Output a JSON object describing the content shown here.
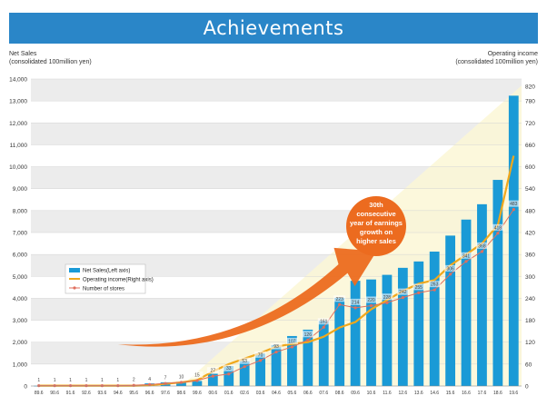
{
  "title": "Achievements",
  "left_axis_title": [
    "Net Sales",
    "(consolidated 100million yen)"
  ],
  "right_axis_title": [
    "Operating income",
    "(consolidated 100million yen)"
  ],
  "callout": {
    "lines": [
      "30th",
      "consecutive",
      "year of earnings",
      "growth on",
      "higher sales"
    ]
  },
  "colors": {
    "bar": "#1a9ad6",
    "operating_income": "#f0a81c",
    "stores": "#e06f5e",
    "arrow": "#ec6b1f",
    "banner": "#2a86c8",
    "shade": "#fbf7d6"
  },
  "chart_data": {
    "type": "bar",
    "categories": [
      "89.6",
      "90.6",
      "91.6",
      "92.6",
      "93.6",
      "94.6",
      "95.6",
      "96.6",
      "97.6",
      "98.6",
      "99.6",
      "00.6",
      "01.6",
      "02.6",
      "03.6",
      "04.6",
      "05.6",
      "06.6",
      "07.6",
      "08.6",
      "09.6",
      "10.6",
      "11.6",
      "12.6",
      "13.6",
      "14.6",
      "15.6",
      "16.6",
      "17.6",
      "18.6",
      "19.6"
    ],
    "y_left": {
      "label": "Net Sales (consolidated 100million yen)",
      "min": 0,
      "max": 14000,
      "ticks": [
        0,
        1000,
        2000,
        3000,
        4000,
        5000,
        6000,
        7000,
        8000,
        9000,
        10000,
        11000,
        12000,
        13000,
        14000
      ]
    },
    "y_right": {
      "label": "Operating income (consolidated 100million yen)",
      "min": 0,
      "max": 840,
      "ticks": [
        0,
        60,
        120,
        180,
        240,
        300,
        360,
        420,
        480,
        540,
        600,
        660,
        720,
        780,
        820
      ]
    },
    "grid": "horizontal alternating bands",
    "legend_position": "left-middle",
    "series": [
      {
        "name": "Net Sales(Left axis)",
        "axis": "left",
        "type": "bar",
        "values": [
          10,
          15,
          20,
          25,
          30,
          40,
          60,
          120,
          170,
          190,
          230,
          560,
          910,
          1130,
          1480,
          1870,
          2280,
          2570,
          2970,
          4020,
          4800,
          4860,
          5070,
          5390,
          5680,
          6130,
          6860,
          7590,
          8290,
          9400,
          13240
        ]
      },
      {
        "name": "Operating income(Right axis)",
        "axis": "right",
        "type": "line",
        "values": [
          1,
          1,
          1,
          1,
          1,
          1,
          1,
          2,
          6,
          10,
          16,
          40,
          60,
          75,
          90,
          108,
          115,
          120,
          135,
          160,
          175,
          210,
          235,
          260,
          280,
          290,
          330,
          360,
          390,
          440,
          630
        ]
      },
      {
        "name": "Number of stores",
        "axis": "right",
        "type": "line",
        "labeled": true,
        "values": [
          1,
          1,
          1,
          1,
          1,
          1,
          2,
          4,
          7,
          10,
          15,
          27,
          33,
          53,
          70,
          93,
          107,
          126,
          161,
          223,
          214,
          220,
          228,
          242,
          255,
          263,
          306,
          341,
          368,
          418,
          483
        ]
      }
    ]
  }
}
